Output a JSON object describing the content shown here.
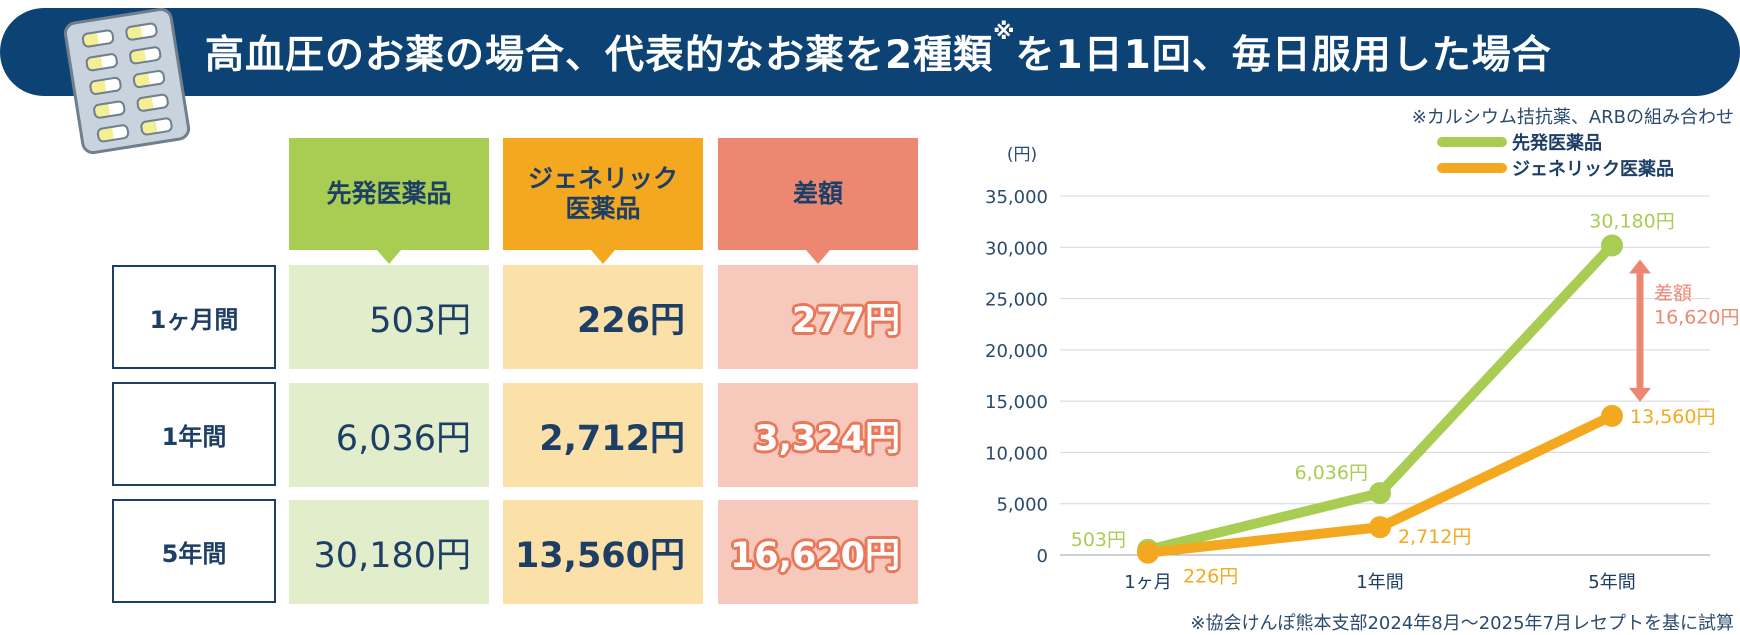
{
  "header": {
    "title_main": "高血圧のお薬の場合、代表的なお薬を2種類",
    "title_mark": "※",
    "title_tail": "を1日1回、毎日服用した場合",
    "note": "※カルシウム拮抗薬、ARBの組み合わせ"
  },
  "table": {
    "col_brand": "先発医薬品",
    "col_generic_l1": "ジェネリック",
    "col_generic_l2": "医薬品",
    "col_diff": "差額",
    "rows": [
      {
        "period": "1ヶ月間",
        "brand": "503円",
        "generic": "226円",
        "diff": "277円"
      },
      {
        "period": "1年間",
        "brand": "6,036円",
        "generic": "2,712円",
        "diff": "3,324円"
      },
      {
        "period": "5年間",
        "brand": "30,180円",
        "generic": "13,560円",
        "diff": "16,620円"
      }
    ]
  },
  "footer_note": "※協会けんぽ熊本支部2024年8月～2025年7月レセプトを基に試算",
  "colors": {
    "brand": "#a9cd52",
    "generic": "#f4a81f",
    "diff": "#ec8871",
    "navy": "#0c4374"
  },
  "chart_data": {
    "type": "line",
    "ylabel": "(円)",
    "ylim": [
      0,
      35000
    ],
    "yticks": [
      0,
      5000,
      10000,
      15000,
      20000,
      25000,
      30000,
      35000
    ],
    "ytick_labels": [
      "0",
      "5,000",
      "10,000",
      "15,000",
      "20,000",
      "25,000",
      "30,000",
      "35,000"
    ],
    "categories": [
      "1ヶ月",
      "1年間",
      "5年間"
    ],
    "series": [
      {
        "name": "先発医薬品",
        "values": [
          503,
          6036,
          30180
        ],
        "labels": [
          "503円",
          "6,036円",
          "30,180円"
        ],
        "color": "#a9cd52"
      },
      {
        "name": "ジェネリック医薬品",
        "values": [
          226,
          2712,
          13560
        ],
        "labels": [
          "226円",
          "2,712円",
          "13,560円"
        ],
        "color": "#f4a81f"
      }
    ],
    "annotation": {
      "line1": "差額",
      "line2": "16,620円"
    },
    "legend": "top-right",
    "grid": true
  }
}
